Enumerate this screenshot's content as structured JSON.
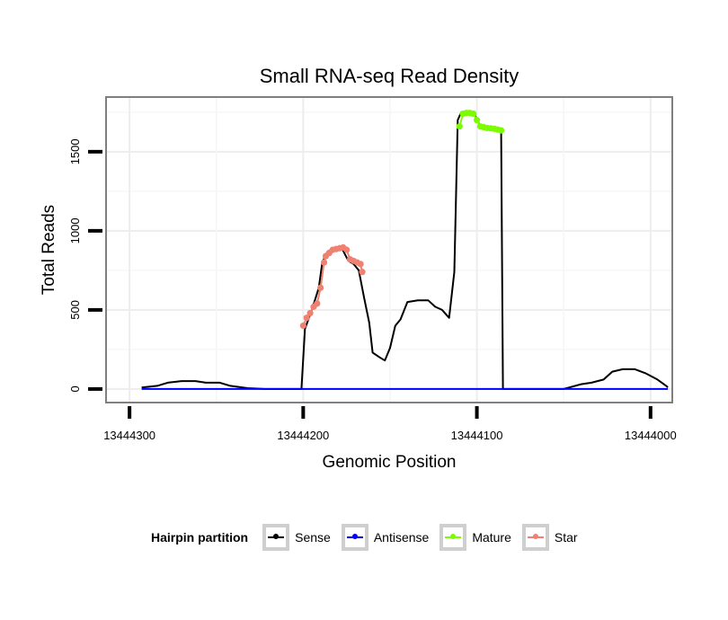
{
  "chart_data": {
    "type": "line",
    "title": "Small RNA-seq Read Density",
    "xlabel": "Genomic Position",
    "ylabel": "Total Reads",
    "x_reversed": true,
    "xlim": [
      13444313,
      13443988
    ],
    "ylim": [
      -80,
      1840
    ],
    "x_ticks": [
      13444300,
      13444200,
      13444100,
      13444000
    ],
    "x_tick_labels": [
      "13444300",
      "13444200",
      "13444100",
      "13444000"
    ],
    "y_ticks": [
      0,
      500,
      1000,
      1500
    ],
    "y_tick_labels": [
      "0",
      "500",
      "1000",
      "1500"
    ],
    "grid": true,
    "legend_title": "Hairpin partition",
    "legend_position": "bottom",
    "series": [
      {
        "name": "Sense",
        "color": "#000000",
        "points": [
          [
            13444293,
            10
          ],
          [
            13444284,
            20
          ],
          [
            13444278,
            40
          ],
          [
            13444270,
            50
          ],
          [
            13444262,
            50
          ],
          [
            13444256,
            40
          ],
          [
            13444248,
            40
          ],
          [
            13444242,
            20
          ],
          [
            13444232,
            5
          ],
          [
            13444222,
            0
          ],
          [
            13444201,
            0
          ],
          [
            13444199,
            380
          ],
          [
            13444195,
            500
          ],
          [
            13444191,
            640
          ],
          [
            13444189,
            800
          ],
          [
            13444186,
            870
          ],
          [
            13444182,
            890
          ],
          [
            13444178,
            895
          ],
          [
            13444174,
            810
          ],
          [
            13444171,
            790
          ],
          [
            13444168,
            750
          ],
          [
            13444165,
            580
          ],
          [
            13444162,
            420
          ],
          [
            13444160,
            230
          ],
          [
            13444156,
            200
          ],
          [
            13444153,
            180
          ],
          [
            13444150,
            260
          ],
          [
            13444147,
            400
          ],
          [
            13444144,
            440
          ],
          [
            13444140,
            550
          ],
          [
            13444134,
            560
          ],
          [
            13444128,
            560
          ],
          [
            13444124,
            520
          ],
          [
            13444120,
            500
          ],
          [
            13444116,
            450
          ],
          [
            13444113,
            740
          ],
          [
            13444111,
            1700
          ],
          [
            13444109,
            1750
          ],
          [
            13444102,
            1750
          ],
          [
            13444098,
            1660
          ],
          [
            13444094,
            1650
          ],
          [
            13444090,
            1640
          ],
          [
            13444088,
            1640
          ],
          [
            13444086,
            1620
          ],
          [
            13444085,
            0
          ],
          [
            13444050,
            0
          ],
          [
            13444040,
            30
          ],
          [
            13444034,
            40
          ],
          [
            13444027,
            60
          ],
          [
            13444022,
            110
          ],
          [
            13444016,
            125
          ],
          [
            13444009,
            125
          ],
          [
            13444003,
            100
          ],
          [
            13443996,
            60
          ],
          [
            13443991,
            20
          ],
          [
            13443990,
            10
          ]
        ]
      },
      {
        "name": "Antisense",
        "color": "#0000ff",
        "points": [
          [
            13444293,
            0
          ],
          [
            13443990,
            0
          ]
        ]
      },
      {
        "name": "Mature",
        "color": "#7cfc00",
        "points": [
          [
            13444110,
            1660
          ],
          [
            13444108,
            1740
          ],
          [
            13444106,
            1745
          ],
          [
            13444104,
            1745
          ],
          [
            13444102,
            1740
          ],
          [
            13444100,
            1700
          ],
          [
            13444098,
            1660
          ],
          [
            13444096,
            1655
          ],
          [
            13444094,
            1650
          ],
          [
            13444092,
            1648
          ],
          [
            13444090,
            1645
          ],
          [
            13444088,
            1640
          ],
          [
            13444086,
            1635
          ]
        ]
      },
      {
        "name": "Star",
        "color": "#f08070",
        "points": [
          [
            13444200,
            400
          ],
          [
            13444198,
            450
          ],
          [
            13444196,
            480
          ],
          [
            13444194,
            520
          ],
          [
            13444192,
            540
          ],
          [
            13444190,
            640
          ],
          [
            13444188,
            800
          ],
          [
            13444187,
            840
          ],
          [
            13444185,
            860
          ],
          [
            13444183,
            880
          ],
          [
            13444181,
            885
          ],
          [
            13444179,
            890
          ],
          [
            13444177,
            895
          ],
          [
            13444175,
            880
          ],
          [
            13444173,
            820
          ],
          [
            13444171,
            810
          ],
          [
            13444169,
            800
          ],
          [
            13444167,
            790
          ],
          [
            13444166,
            740
          ]
        ]
      }
    ]
  }
}
